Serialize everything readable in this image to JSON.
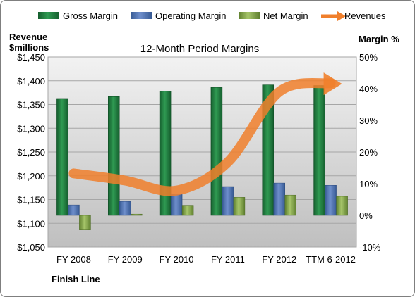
{
  "chart_data": {
    "type": "bar",
    "title": "12-Month Period Margins",
    "footer": "Finish Line",
    "categories": [
      "FY 2008",
      "FY 2009",
      "FY 2010",
      "FY 2011",
      "FY 2012",
      "TTM 6-2012"
    ],
    "left_axis": {
      "label_line1": "Revenue",
      "label_line2": "$millions",
      "min": 1050,
      "max": 1450,
      "ticks": [
        "$1,050",
        "$1,100",
        "$1,150",
        "$1,200",
        "$1,250",
        "$1,300",
        "$1,350",
        "$1,400",
        "$1,450"
      ]
    },
    "right_axis": {
      "label": "Margin %",
      "min": -10,
      "max": 50,
      "ticks": [
        "-10%",
        "0%",
        "10%",
        "20%",
        "30%",
        "40%",
        "50%"
      ]
    },
    "series": [
      {
        "name": "Gross Margin",
        "axis": "right",
        "values": [
          36.9,
          37.5,
          39.2,
          40.4,
          41.2,
          41.0
        ],
        "color": "#1e7a3e"
      },
      {
        "name": "Operating Margin",
        "axis": "right",
        "values": [
          3.3,
          4.4,
          6.7,
          9.1,
          10.2,
          9.5
        ],
        "color": "#4a6fad"
      },
      {
        "name": "Net Margin",
        "axis": "right",
        "values": [
          -4.6,
          0.4,
          3.2,
          5.7,
          6.4,
          6.0
        ],
        "color": "#86a84a"
      },
      {
        "name": "Revenues",
        "axis": "left",
        "type": "line",
        "values": [
          1205,
          1190,
          1169,
          1229,
          1377,
          1395
        ],
        "color": "#f07f2b"
      }
    ],
    "grid": true,
    "legend_position": "top"
  }
}
